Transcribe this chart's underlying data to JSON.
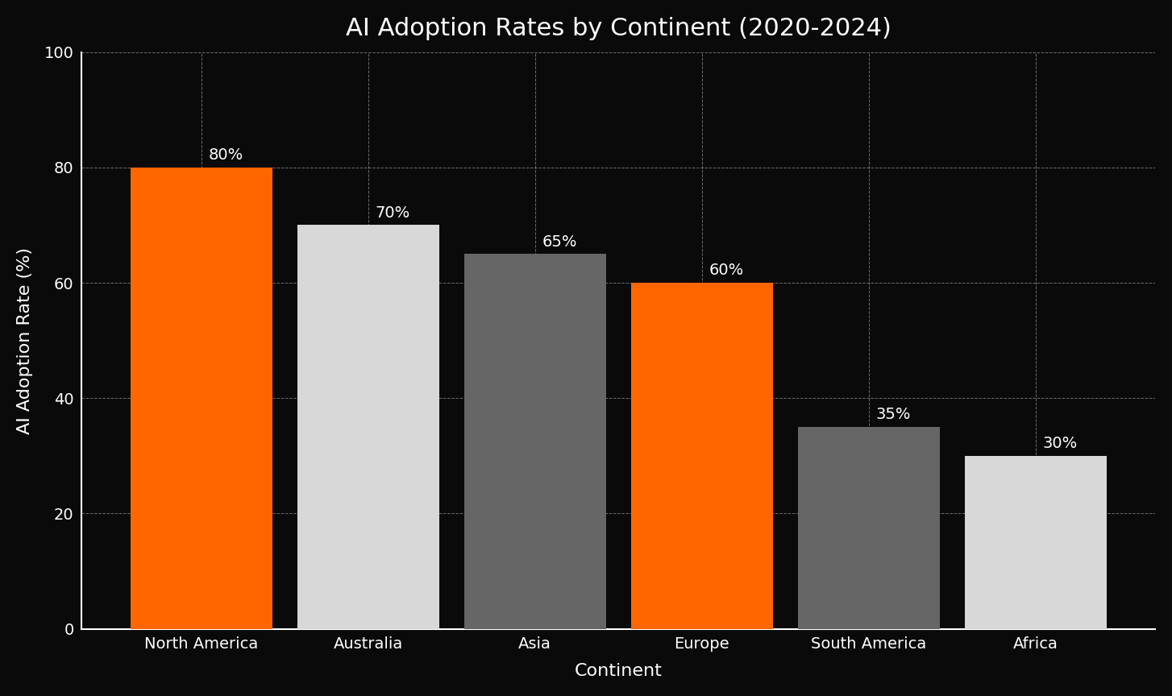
{
  "title": "AI Adoption Rates by Continent (2020-2024)",
  "xlabel": "Continent",
  "ylabel": "AI Adoption Rate (%)",
  "categories": [
    "North America",
    "Australia",
    "Asia",
    "Europe",
    "South America",
    "Africa"
  ],
  "values": [
    80,
    70,
    65,
    60,
    35,
    30
  ],
  "bar_colors": [
    "#FF6600",
    "#D8D8D8",
    "#666666",
    "#FF6600",
    "#666666",
    "#D8D8D8"
  ],
  "background_color": "#0a0a0a",
  "text_color": "#FFFFFF",
  "grid_color": "#FFFFFF",
  "title_fontsize": 22,
  "label_fontsize": 16,
  "tick_fontsize": 14,
  "annotation_fontsize": 14,
  "ylim": [
    0,
    100
  ],
  "yticks": [
    0,
    20,
    40,
    60,
    80,
    100
  ],
  "bar_width": 0.85
}
